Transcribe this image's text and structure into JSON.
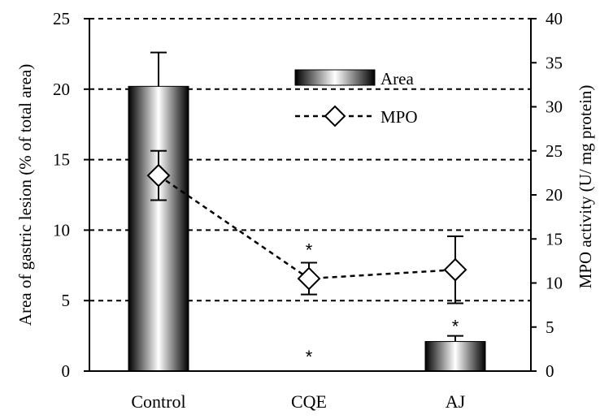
{
  "chart_data": {
    "type": "bar",
    "title": "",
    "categories": [
      "Control",
      "CQE",
      "AJ"
    ],
    "left_axis": {
      "label": "Area of gastric lesion (% of total area)",
      "ylim": [
        0,
        25
      ],
      "ticks": [
        "0",
        "5",
        "10",
        "15",
        "20",
        "25"
      ]
    },
    "right_axis": {
      "label": "MPO activity (U/ mg protein)",
      "ylim": [
        0,
        40
      ],
      "ticks": [
        "0",
        "5",
        "10",
        "15",
        "20",
        "25",
        "30",
        "35",
        "40"
      ]
    },
    "grid": "horizontal dashed",
    "legend_position": "top-center",
    "series": [
      {
        "name": "Area",
        "type": "bar",
        "axis": "left",
        "values": [
          20.2,
          0.0,
          2.1
        ],
        "errors": [
          2.4,
          0.0,
          0.4
        ],
        "markers": [
          "",
          "*",
          "*"
        ]
      },
      {
        "name": "MPO",
        "type": "line",
        "style": "dashed",
        "marker": "diamond",
        "axis": "right",
        "values": [
          22.2,
          10.5,
          11.5
        ],
        "errors": [
          2.8,
          1.8,
          3.8
        ],
        "markers": [
          "",
          "*",
          ""
        ]
      }
    ]
  }
}
